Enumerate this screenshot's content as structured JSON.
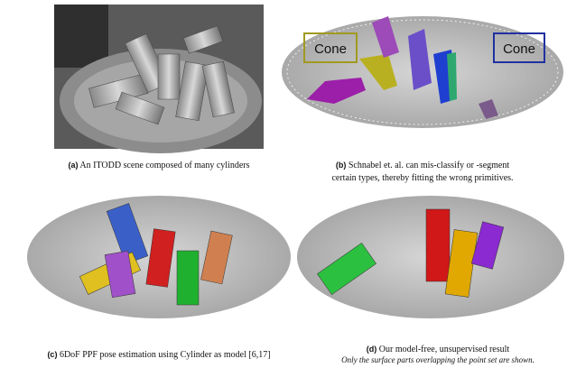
{
  "panels": [
    {
      "label": "(a)",
      "caption": [
        "An ITODD scene composed of many cylinders"
      ]
    },
    {
      "label": "(b)",
      "caption": [
        "Schnabel et. al. can mis-classify or -segment",
        "certain types, thereby fitting the wrong primitives."
      ],
      "tags": [
        "Cone",
        "Cone"
      ]
    },
    {
      "label": "(c)",
      "caption": [
        "6DoF PPF pose estimation using Cylinder as model [6,17]"
      ]
    },
    {
      "label": "(d)",
      "caption": [
        "Our model-free, unsupervised result"
      ],
      "note": "Only the surface parts overlapping the point set are shown."
    }
  ]
}
